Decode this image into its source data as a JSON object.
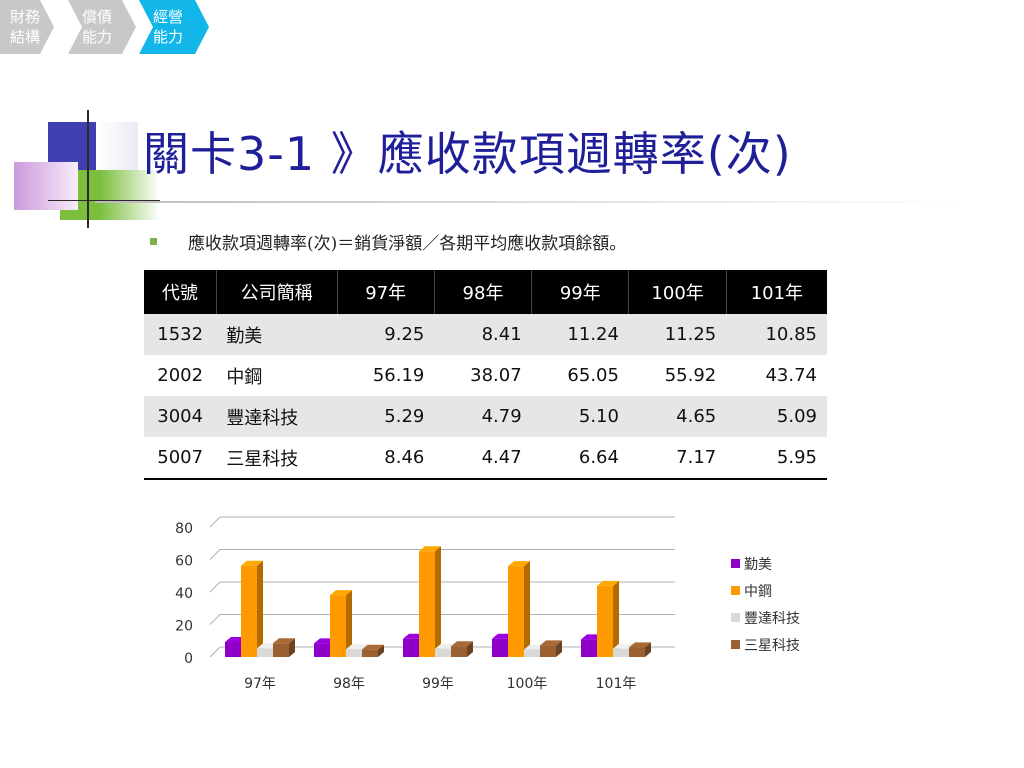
{
  "breadcrumbs": [
    {
      "label": "財務結構",
      "color": "#c8c8c8"
    },
    {
      "label": "償債能力",
      "color": "#c8c8c8"
    },
    {
      "label": "經營能力",
      "color": "#12b6e8"
    }
  ],
  "title": "關卡3-1 》應收款項週轉率(次)",
  "formula": "應收款項週轉率(次)＝銷貨淨額／各期平均應收款項餘額。",
  "table": {
    "headers": [
      "代號",
      "公司簡稱",
      "97年",
      "98年",
      "99年",
      "100年",
      "101年"
    ],
    "rows": [
      {
        "code": "1532",
        "name": "勤美",
        "values": [
          "9.25",
          "8.41",
          "11.24",
          "11.25",
          "10.85"
        ]
      },
      {
        "code": "2002",
        "name": "中鋼",
        "values": [
          "56.19",
          "38.07",
          "65.05",
          "55.92",
          "43.74"
        ]
      },
      {
        "code": "3004",
        "name": "豐達科技",
        "values": [
          "5.29",
          "4.79",
          "5.10",
          "4.65",
          "5.09"
        ]
      },
      {
        "code": "5007",
        "name": "三星科技",
        "values": [
          "8.46",
          "4.47",
          "6.64",
          "7.17",
          "5.95"
        ]
      }
    ]
  },
  "chart_data": {
    "type": "bar",
    "categories": [
      "97年",
      "98年",
      "99年",
      "100年",
      "101年"
    ],
    "series": [
      {
        "name": "勤美",
        "color": "#8e00c8",
        "values": [
          9.25,
          8.41,
          11.24,
          11.25,
          10.85
        ]
      },
      {
        "name": "中鋼",
        "color": "#ff9900",
        "values": [
          56.19,
          38.07,
          65.05,
          55.92,
          43.74
        ]
      },
      {
        "name": "豐達科技",
        "color": "#d9d9d9",
        "values": [
          5.29,
          4.79,
          5.1,
          4.65,
          5.09
        ]
      },
      {
        "name": "三星科技",
        "color": "#9a6031",
        "values": [
          8.46,
          4.47,
          6.64,
          7.17,
          5.95
        ]
      }
    ],
    "ylim": [
      0,
      80
    ],
    "yticks": [
      "0",
      "20",
      "40",
      "60",
      "80"
    ],
    "grid": true,
    "legend": "right",
    "style": "3d-bars"
  }
}
